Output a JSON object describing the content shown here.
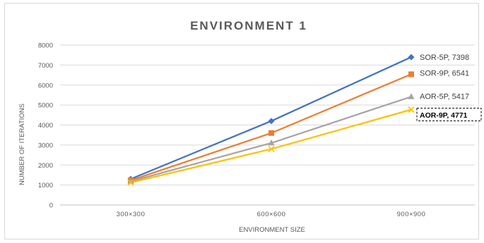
{
  "chart_data": {
    "type": "line",
    "title": "ENVIRONMENT 1",
    "xlabel": "ENVIRONMENT SIZE",
    "ylabel": "NUMBER OF ITERATIONS",
    "categories": [
      "300×300",
      "600×600",
      "900×900"
    ],
    "ylim": [
      0,
      8000
    ],
    "yticks": [
      "0",
      "1000",
      "2000",
      "3000",
      "4000",
      "5000",
      "6000",
      "7000",
      "8000"
    ],
    "grid": true,
    "series": [
      {
        "name": "SOR-5P",
        "values": [
          1300,
          4200,
          7398
        ],
        "color": "#4472c4",
        "marker": "diamond",
        "label": "SOR-5P, 7398"
      },
      {
        "name": "SOR-9P",
        "values": [
          1230,
          3600,
          6541
        ],
        "color": "#ed7d31",
        "marker": "square",
        "label": "SOR-9P, 6541"
      },
      {
        "name": "AOR-5P",
        "values": [
          1180,
          3100,
          5417
        ],
        "color": "#a5a5a5",
        "marker": "triangle",
        "label": "AOR-5P, 5417"
      },
      {
        "name": "AOR-9P",
        "values": [
          1120,
          2800,
          4771
        ],
        "color": "#ffc000",
        "marker": "x",
        "label": "AOR-9P, 4771"
      }
    ]
  }
}
